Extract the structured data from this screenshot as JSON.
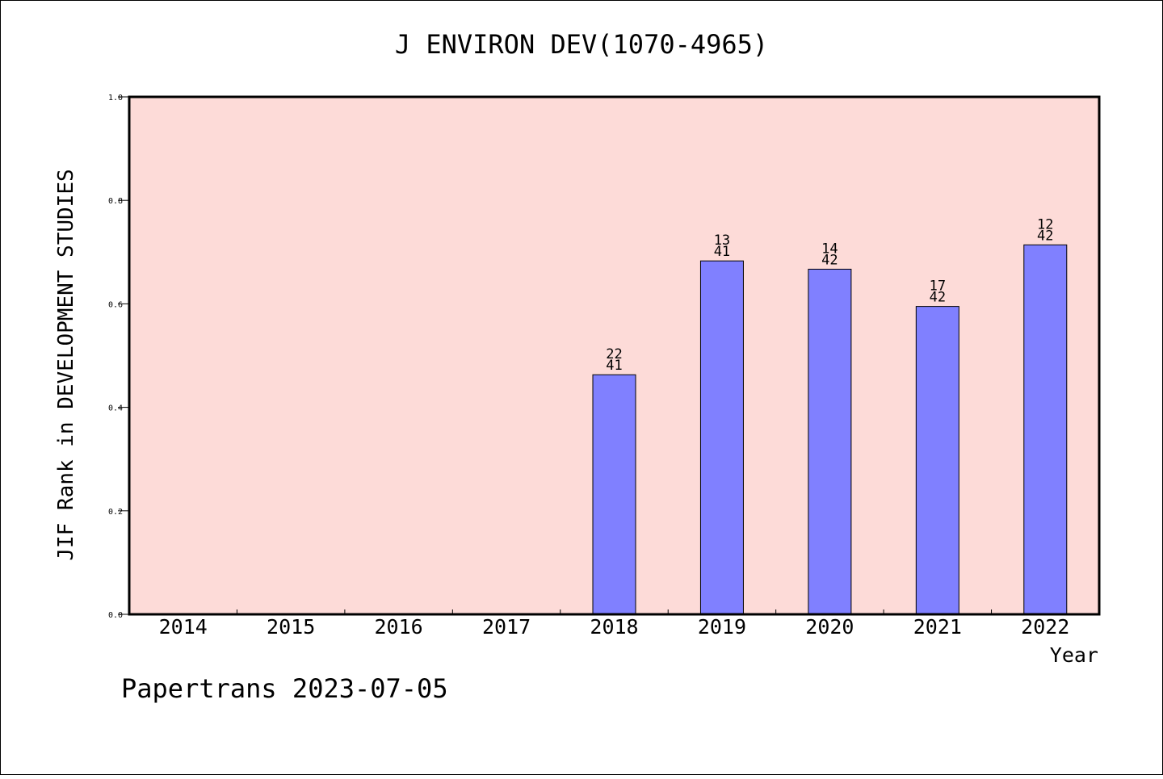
{
  "chart_data": {
    "type": "bar",
    "title": "J ENVIRON DEV(1070-4965)",
    "xlabel": "Year",
    "ylabel": "JIF Rank in DEVELOPMENT STUDIES",
    "categories": [
      "2014",
      "2015",
      "2016",
      "2017",
      "2018",
      "2019",
      "2020",
      "2021",
      "2022"
    ],
    "values": [
      null,
      null,
      null,
      null,
      0.463,
      0.683,
      0.667,
      0.595,
      0.714
    ],
    "bar_labels": [
      null,
      null,
      null,
      null,
      {
        "rank": "22",
        "total": "41"
      },
      {
        "rank": "13",
        "total": "41"
      },
      {
        "rank": "14",
        "total": "42"
      },
      {
        "rank": "17",
        "total": "42"
      },
      {
        "rank": "12",
        "total": "42"
      }
    ],
    "ylim": [
      0,
      1.0
    ],
    "yticks": [
      "0.0",
      "0.2",
      "0.4",
      "0.6",
      "0.8",
      "1.0"
    ],
    "grid": false,
    "colors": {
      "plot_background": "#fddbd8",
      "bar_fill": "#8080ff",
      "bar_stroke": "#000000",
      "axis": "#000000"
    }
  },
  "footer": {
    "text": "Papertrans 2023-07-05"
  }
}
